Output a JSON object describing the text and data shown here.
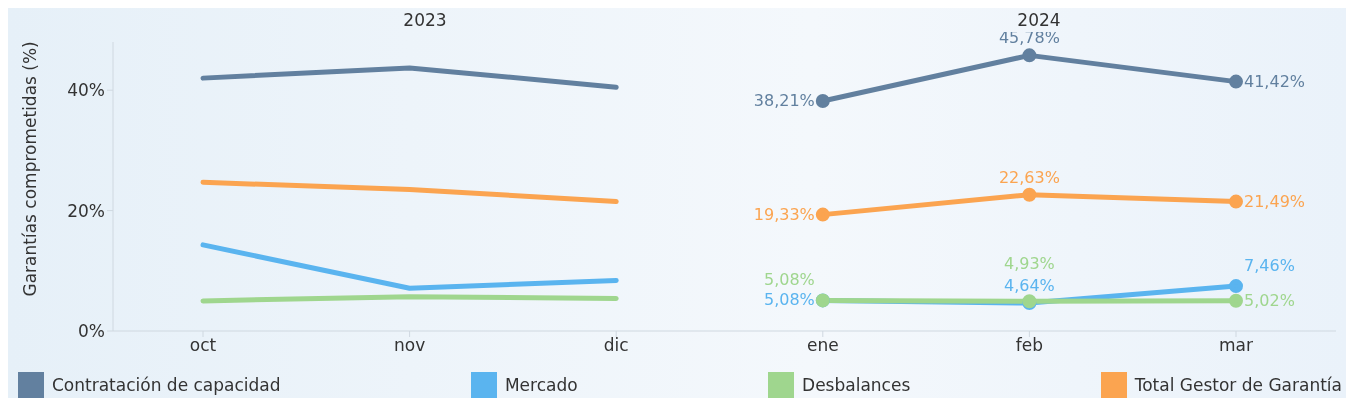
{
  "chart_data": {
    "type": "line",
    "ylabel": "Garantías comprometidas (%)",
    "annotations": [
      "2023",
      "2024"
    ],
    "categories": [
      "oct",
      "nov",
      "dic",
      "ene",
      "feb",
      "mar"
    ],
    "ylim": [
      0,
      48
    ],
    "yticks": [
      {
        "value": 0,
        "label": "0%"
      },
      {
        "value": 20,
        "label": "20%"
      },
      {
        "value": 40,
        "label": "40%"
      }
    ],
    "legend": "bottom",
    "line_style": "solid",
    "series": [
      {
        "name": "Contratación de capacidad",
        "color": "#62809f",
        "values": [
          42.0,
          43.7,
          40.5,
          null,
          null,
          null
        ],
        "marker": "none"
      },
      {
        "name": "Mercado",
        "color": "#5ab4ef",
        "values": [
          14.3,
          7.1,
          8.4,
          null,
          null,
          null
        ],
        "marker": "none"
      },
      {
        "name": "Desbalances",
        "color": "#9fd68e",
        "values": [
          5.0,
          5.7,
          5.4,
          null,
          null,
          null
        ],
        "marker": "none"
      },
      {
        "name": "Total Gestor de Garantía",
        "color": "#fba450",
        "values": [
          24.7,
          23.5,
          21.5,
          null,
          null,
          null
        ],
        "marker": "none"
      },
      {
        "color": "#62809f",
        "values": [
          null,
          null,
          null,
          38.21,
          45.78,
          41.42
        ],
        "marker": "circle",
        "value_labels": [
          null,
          null,
          null,
          "38,21%",
          "45,78%",
          "41,42%"
        ]
      },
      {
        "color": "#5ab4ef",
        "values": [
          null,
          null,
          null,
          5.08,
          4.64,
          7.46
        ],
        "marker": "circle",
        "value_labels": [
          null,
          null,
          null,
          "5,08%",
          "4,64%",
          "7,46%"
        ]
      },
      {
        "color": "#9fd68e",
        "values": [
          null,
          null,
          null,
          5.08,
          4.93,
          5.02
        ],
        "marker": "circle",
        "value_labels": [
          null,
          null,
          null,
          "5,08%",
          "4,93%",
          "5,02%"
        ]
      },
      {
        "color": "#fba450",
        "values": [
          null,
          null,
          null,
          19.33,
          22.63,
          21.49
        ],
        "marker": "circle",
        "value_labels": [
          null,
          null,
          null,
          "19,33%",
          "22,63%",
          "21,49%"
        ]
      }
    ]
  }
}
